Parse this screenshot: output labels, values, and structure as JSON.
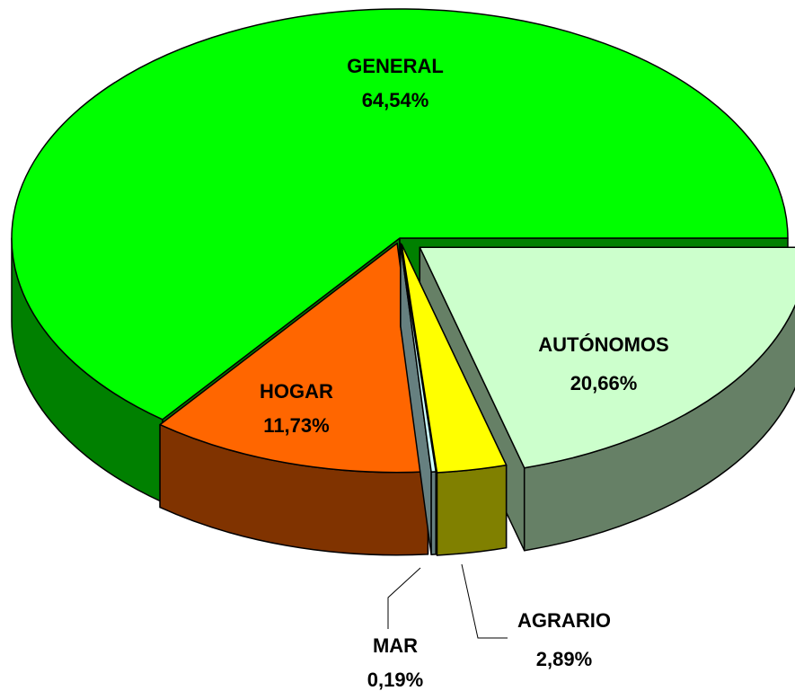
{
  "chart_data": {
    "type": "pie3d",
    "categories": [
      "AUTÓNOMOS",
      "AGRARIO",
      "MAR",
      "HOGAR",
      "GENERAL"
    ],
    "values": [
      20.66,
      2.89,
      0.19,
      11.73,
      64.54
    ],
    "value_labels": [
      "20,66%",
      "2,89%",
      "0,19%",
      "11,73%",
      "64,54%"
    ],
    "colors": [
      "#ccffcc",
      "#ffff00",
      "#ccffff",
      "#ff6600",
      "#00ff00"
    ]
  }
}
